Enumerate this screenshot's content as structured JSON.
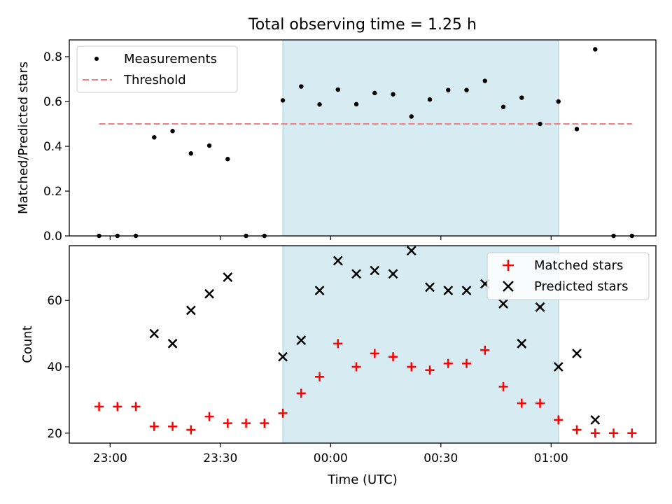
{
  "chart_data": {
    "title": "Total observing time = 1.25 h",
    "xlabel": "Time (UTC)",
    "x_ticks": [
      "23:00",
      "23:30",
      "00:00",
      "00:30",
      "01:00"
    ],
    "shaded_region": {
      "start": "23:47",
      "end": "01:02",
      "color": "#add8e6"
    },
    "subplots": [
      {
        "type": "scatter",
        "ylabel": "Matched/Predicted stars",
        "ylim": [
          0,
          0.875
        ],
        "yticks": [
          0.0,
          0.2,
          0.4,
          0.6,
          0.8
        ],
        "legend_position": "top-left",
        "series": [
          {
            "name": "Measurements",
            "marker": "dot",
            "color": "#000000",
            "x": [
              "22:57",
              "23:02",
              "23:07",
              "23:12",
              "23:17",
              "23:22",
              "23:27",
              "23:32",
              "23:37",
              "23:42",
              "23:47",
              "23:52",
              "23:57",
              "00:02",
              "00:07",
              "00:12",
              "00:17",
              "00:22",
              "00:27",
              "00:32",
              "00:37",
              "00:42",
              "00:47",
              "00:52",
              "00:57",
              "01:02",
              "01:07",
              "01:12",
              "01:17",
              "01:22"
            ],
            "values": [
              0.0,
              0.0,
              0.0,
              0.44,
              0.468,
              0.368,
              0.403,
              0.343,
              0.0,
              0.0,
              0.605,
              0.667,
              0.587,
              0.653,
              0.588,
              0.638,
              0.632,
              0.533,
              0.609,
              0.651,
              0.651,
              0.692,
              0.576,
              0.617,
              0.5,
              0.6,
              0.477,
              0.833,
              0.0,
              0.0
            ]
          },
          {
            "name": "Threshold",
            "marker": "dashed-line",
            "color": "#f08080",
            "x": [
              "22:57",
              "01:22"
            ],
            "values": [
              0.5,
              0.5
            ]
          }
        ]
      },
      {
        "type": "scatter",
        "ylabel": "Count",
        "ylim": [
          17,
          76.5
        ],
        "yticks": [
          20,
          40,
          60
        ],
        "legend_position": "top-right",
        "series": [
          {
            "name": "Matched stars",
            "marker": "plus",
            "color": "#ff0000",
            "x": [
              "22:57",
              "23:02",
              "23:07",
              "23:12",
              "23:17",
              "23:22",
              "23:27",
              "23:32",
              "23:37",
              "23:42",
              "23:47",
              "23:52",
              "23:57",
              "00:02",
              "00:07",
              "00:12",
              "00:17",
              "00:22",
              "00:27",
              "00:32",
              "00:37",
              "00:42",
              "00:47",
              "00:52",
              "00:57",
              "01:02",
              "01:07",
              "01:12",
              "01:17",
              "01:22"
            ],
            "values": [
              28,
              28,
              28,
              22,
              22,
              21,
              25,
              23,
              23,
              23,
              26,
              32,
              37,
              47,
              40,
              44,
              43,
              40,
              39,
              41,
              41,
              45,
              34,
              29,
              29,
              24,
              21,
              20,
              20,
              20
            ]
          },
          {
            "name": "Predicted stars",
            "marker": "x",
            "color": "#000000",
            "x": [
              "23:12",
              "23:17",
              "23:22",
              "23:27",
              "23:32",
              "23:47",
              "23:52",
              "23:57",
              "00:02",
              "00:07",
              "00:12",
              "00:17",
              "00:22",
              "00:27",
              "00:32",
              "00:37",
              "00:42",
              "00:47",
              "00:52",
              "00:57",
              "01:02",
              "01:07",
              "01:12"
            ],
            "values": [
              50,
              47,
              57,
              62,
              67,
              43,
              48,
              63,
              72,
              68,
              69,
              68,
              75,
              64,
              63,
              63,
              65,
              59,
              47,
              58,
              40,
              44,
              24
            ]
          }
        ]
      }
    ]
  }
}
